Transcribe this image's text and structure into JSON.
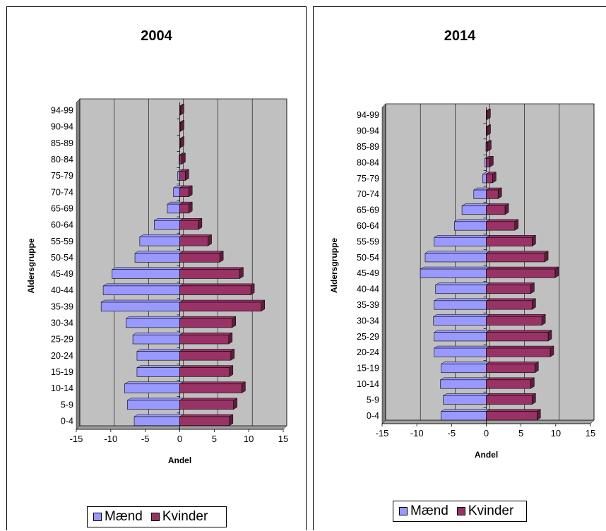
{
  "colors": {
    "men": "#9999ff",
    "women": "#993366",
    "plot_bg": "#c0c0c0",
    "wall": "#808080"
  },
  "legend": {
    "men_label": "Mænd",
    "women_label": "Kvinder"
  },
  "chart_data": [
    {
      "type": "bar",
      "orientation": "horizontal",
      "title": "2004",
      "xlabel": "Andel",
      "ylabel": "Aldersgruppe",
      "xlim": [
        -15,
        15
      ],
      "xticks": [
        -15,
        -10,
        -5,
        0,
        5,
        10,
        15
      ],
      "grid": true,
      "legend_position": "bottom",
      "categories": [
        "0-4",
        "5-9",
        "10-14",
        "15-19",
        "20-24",
        "25-29",
        "30-34",
        "35-39",
        "40-44",
        "45-49",
        "50-54",
        "55-59",
        "60-64",
        "65-69",
        "70-74",
        "75-79",
        "80-84",
        "85-89",
        "90-94",
        "94-99"
      ],
      "series": [
        {
          "name": "Mænd",
          "values": [
            -6.6,
            -7.6,
            -8.0,
            -6.2,
            -6.2,
            -6.8,
            -7.8,
            -11.4,
            -11.1,
            -9.8,
            -6.5,
            -5.8,
            -3.7,
            -1.8,
            -0.9,
            -0.3,
            -0.1,
            0,
            0,
            0
          ]
        },
        {
          "name": "Kvinder",
          "values": [
            7.2,
            7.8,
            9.0,
            7.2,
            7.4,
            7.1,
            7.6,
            11.8,
            10.3,
            8.7,
            5.8,
            4.1,
            2.7,
            1.3,
            1.3,
            0.8,
            0.3,
            0.1,
            0.1,
            0.05
          ]
        }
      ]
    },
    {
      "type": "bar",
      "orientation": "horizontal",
      "title": "2014",
      "xlabel": "Andel",
      "ylabel": "Aldersgruppe",
      "xlim": [
        -15,
        15
      ],
      "xticks": [
        -15,
        -10,
        -5,
        0,
        5,
        10,
        15
      ],
      "grid": true,
      "legend_position": "bottom",
      "categories": [
        "0-4",
        "5-9",
        "10-14",
        "15-19",
        "20-24",
        "25-29",
        "30-34",
        "35-39",
        "40-44",
        "45-49",
        "50-54",
        "55-59",
        "60-64",
        "65-69",
        "70-74",
        "75-79",
        "80-84",
        "85-89",
        "90-94",
        "94-99"
      ],
      "series": [
        {
          "name": "Mænd",
          "values": [
            -6.5,
            -6.2,
            -6.6,
            -6.5,
            -7.5,
            -7.5,
            -7.6,
            -7.5,
            -7.3,
            -9.5,
            -8.8,
            -7.5,
            -4.6,
            -3.5,
            -1.8,
            -0.5,
            -0.2,
            -0.05,
            0,
            0
          ]
        },
        {
          "name": "Kvinder",
          "values": [
            7.3,
            6.6,
            6.4,
            7.0,
            9.2,
            8.9,
            8.0,
            6.6,
            6.4,
            9.9,
            8.4,
            6.6,
            4.1,
            2.7,
            1.7,
            0.9,
            0.5,
            0.2,
            0.1,
            0.05
          ]
        }
      ]
    }
  ]
}
